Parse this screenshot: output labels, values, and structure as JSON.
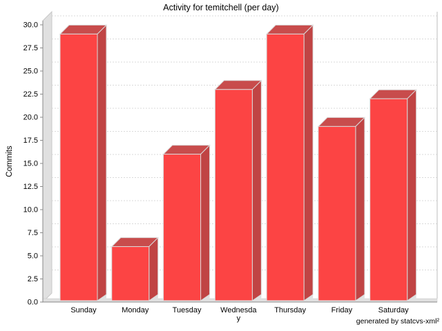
{
  "title": "Activity for temitchell (per day)",
  "footer": "generated by statcvs-xml²",
  "chart_data": {
    "type": "bar",
    "style": "3d-bar",
    "title": "Activity for temitchell (per day)",
    "categories": [
      "Sunday",
      "Monday",
      "Tuesday",
      "Wednesday",
      "Thursday",
      "Friday",
      "Saturday"
    ],
    "category_label_lines": [
      [
        "Sunday"
      ],
      [
        "Monday"
      ],
      [
        "Tuesday"
      ],
      [
        "Wednesda",
        "y"
      ],
      [
        "Thursday"
      ],
      [
        "Friday"
      ],
      [
        "Saturday"
      ]
    ],
    "values": [
      29,
      6,
      16,
      23,
      29,
      19,
      22
    ],
    "xlabel": "",
    "ylabel": "Commits",
    "ylim": [
      0,
      30
    ],
    "ytick_step": 2.5,
    "ytick_labels": [
      "0.0",
      "2.5",
      "5.0",
      "7.5",
      "10.0",
      "12.5",
      "15.0",
      "17.5",
      "20.0",
      "22.5",
      "25.0",
      "27.5",
      "30.0"
    ],
    "grid": "horizontal-dashed",
    "legend": "none",
    "footer": "generated by statcvs-xml²",
    "colors": {
      "bar_front": "#FC4444",
      "bar_side": "#C04444",
      "bar_top": "#C84C4C",
      "bar_outline": "#DADADA",
      "wall": "#E0E0E0",
      "wall_edge": "#C8C8C8",
      "gridline": "#D9D9D9",
      "axis": "#888888",
      "tick_text": "#000000",
      "background": "#FFFFFF"
    }
  }
}
